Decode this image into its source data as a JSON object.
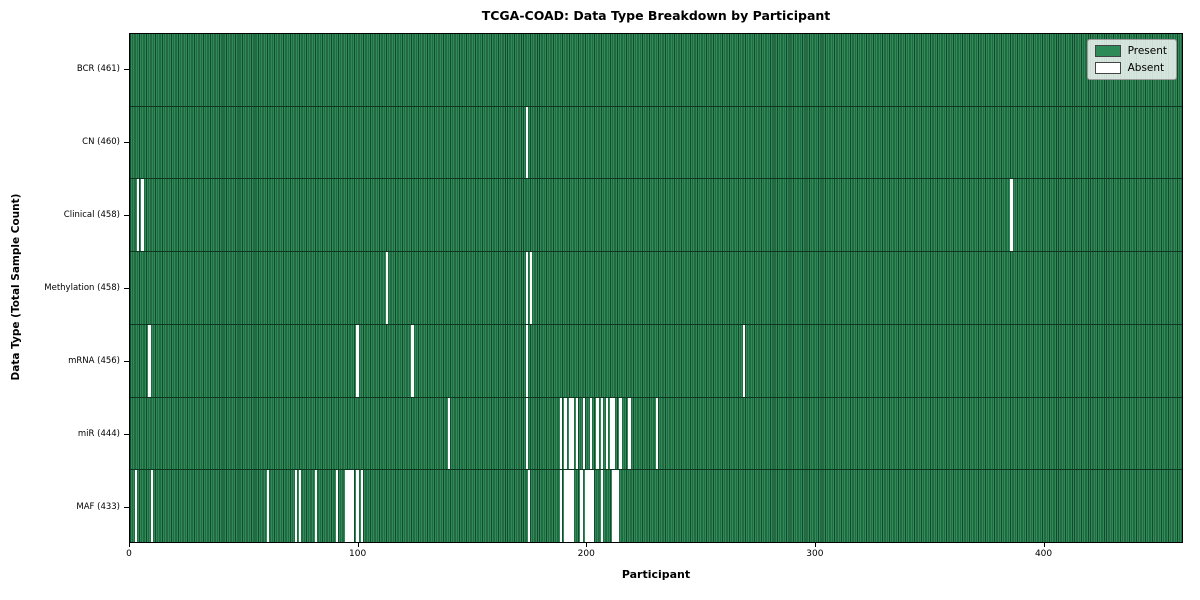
{
  "title": "TCGA-COAD: Data Type Breakdown by Participant",
  "xlabel": "Participant",
  "ylabel": "Data Type (Total Sample Count)",
  "legend": {
    "present_label": "Present",
    "absent_label": "Absent"
  },
  "colors": {
    "present": "#2e8b57",
    "absent": "#ffffff",
    "cell_edge": "#17482e",
    "row_separator": "#0e3520",
    "legend_bg": "rgba(255,255,255,0.8)"
  },
  "chart_data": {
    "type": "heatmap",
    "title": "TCGA-COAD: Data Type Breakdown by Participant",
    "xlabel": "Participant",
    "ylabel": "Data Type (Total Sample Count)",
    "x_range": [
      0,
      461
    ],
    "x_ticks": [
      0,
      100,
      200,
      300,
      400
    ],
    "legend_entries": [
      "Present",
      "Absent"
    ],
    "legend_position": "upper right",
    "rows": [
      {
        "label": "BCR (461)",
        "data_type": "BCR",
        "present_count": 461,
        "absent_participants": []
      },
      {
        "label": "CN (460)",
        "data_type": "CN",
        "present_count": 460,
        "absent_participants": [
          173
        ]
      },
      {
        "label": "Clinical (458)",
        "data_type": "Clinical",
        "present_count": 458,
        "absent_participants": [
          3,
          5,
          385
        ]
      },
      {
        "label": "Methylation (458)",
        "data_type": "Methylation",
        "present_count": 458,
        "absent_participants": [
          112,
          173,
          175
        ]
      },
      {
        "label": "mRNA (456)",
        "data_type": "mRNA",
        "present_count": 456,
        "absent_participants": [
          8,
          99,
          123,
          173,
          268
        ]
      },
      {
        "label": "miR (444)",
        "data_type": "miR",
        "present_count": 444,
        "absent_participants": [
          139,
          173,
          188,
          190,
          192,
          193,
          195,
          198,
          201,
          204,
          206,
          208,
          210,
          211,
          214,
          218,
          230
        ]
      },
      {
        "label": "MAF (433)",
        "data_type": "MAF",
        "present_count": 433,
        "absent_participants": [
          2,
          9,
          60,
          72,
          74,
          81,
          90,
          94,
          95,
          96,
          97,
          99,
          101,
          174,
          188,
          190,
          191,
          192,
          193,
          197,
          199,
          200,
          201,
          202,
          206,
          211,
          212,
          213
        ]
      }
    ]
  }
}
